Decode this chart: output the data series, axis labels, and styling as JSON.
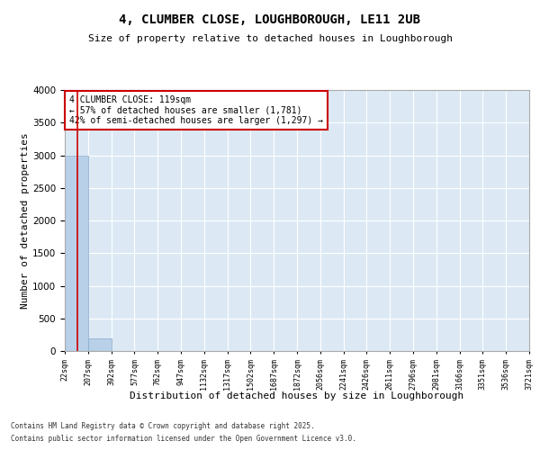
{
  "title1": "4, CLUMBER CLOSE, LOUGHBOROUGH, LE11 2UB",
  "title2": "Size of property relative to detached houses in Loughborough",
  "xlabel": "Distribution of detached houses by size in Loughborough",
  "ylabel": "Number of detached properties",
  "footnote1": "Contains HM Land Registry data © Crown copyright and database right 2025.",
  "footnote2": "Contains public sector information licensed under the Open Government Licence v3.0.",
  "annotation_title": "4 CLUMBER CLOSE: 119sqm",
  "annotation_line1": "← 57% of detached houses are smaller (1,781)",
  "annotation_line2": "42% of semi-detached houses are larger (1,297) →",
  "property_size": 119,
  "bar_edges": [
    22,
    207,
    392,
    577,
    762,
    947,
    1132,
    1317,
    1502,
    1687,
    1872,
    2056,
    2241,
    2426,
    2611,
    2796,
    2981,
    3166,
    3351,
    3536,
    3721
  ],
  "bar_heights": [
    3000,
    200,
    0,
    0,
    0,
    0,
    0,
    0,
    0,
    0,
    0,
    0,
    0,
    0,
    0,
    0,
    0,
    0,
    0,
    0
  ],
  "bar_color": "#b8d0e8",
  "bar_edge_color": "#88aacc",
  "property_line_color": "#cc0000",
  "annotation_box_color": "#cc0000",
  "background_color": "#dce9f5",
  "grid_color": "#ffffff",
  "fig_background": "#ffffff",
  "ylim": [
    0,
    4000
  ],
  "yticks": [
    0,
    500,
    1000,
    1500,
    2000,
    2500,
    3000,
    3500,
    4000
  ]
}
